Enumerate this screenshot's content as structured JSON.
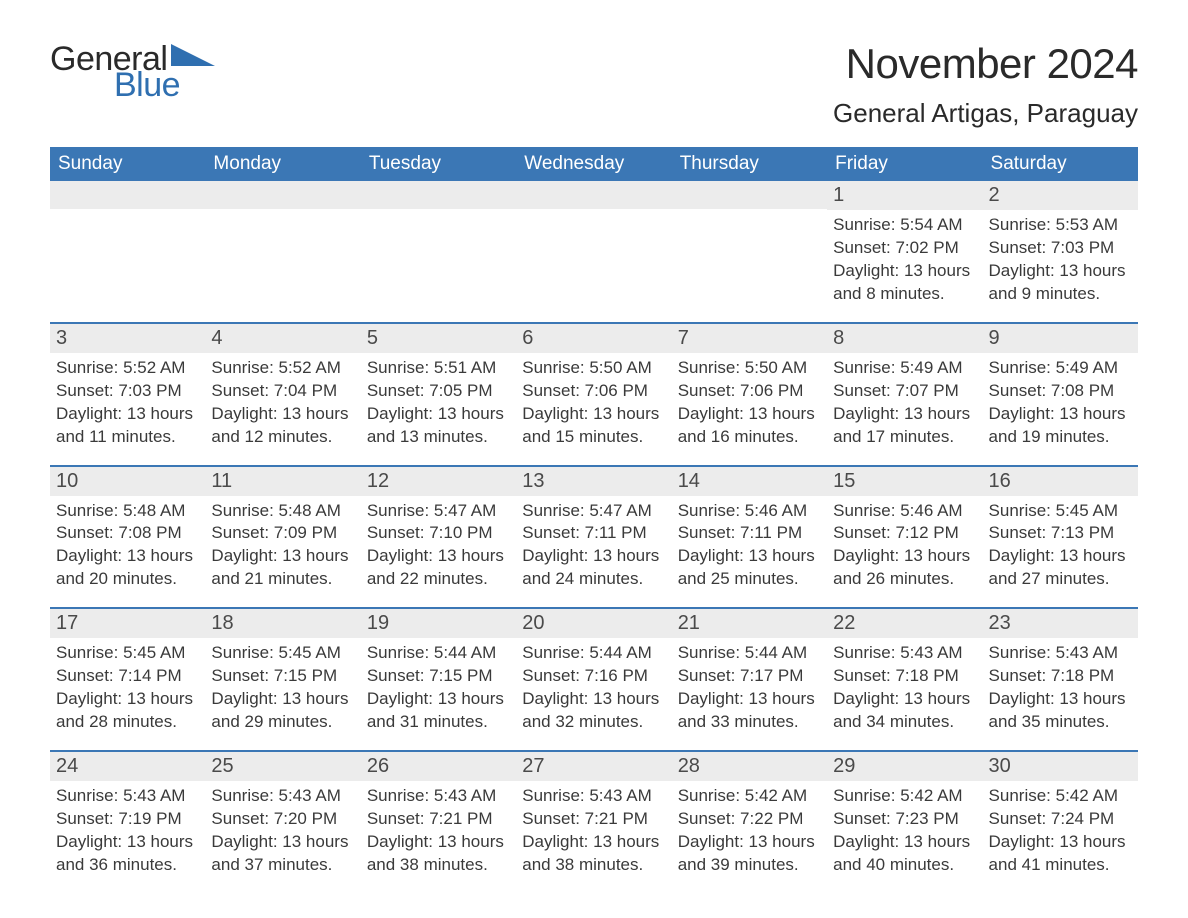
{
  "brand": {
    "word1": "General",
    "word2": "Blue",
    "word1_color": "#2a2a2a",
    "word2_color": "#2f6fb0",
    "triangle_color": "#2f6fb0"
  },
  "title": "November 2024",
  "location": "General Artigas, Paraguay",
  "colors": {
    "header_bg": "#3b77b5",
    "header_text": "#ffffff",
    "daynum_bg": "#ececec",
    "daynum_text": "#4a4a4a",
    "body_text": "#3a3a3a",
    "week_divider": "#3b77b5",
    "page_bg": "#ffffff"
  },
  "fonts": {
    "title_pt": 42,
    "location_pt": 26,
    "dow_pt": 19,
    "daynum_pt": 20,
    "body_pt": 17,
    "logo_pt": 34
  },
  "days_of_week": [
    "Sunday",
    "Monday",
    "Tuesday",
    "Wednesday",
    "Thursday",
    "Friday",
    "Saturday"
  ],
  "weeks": [
    [
      {
        "date": null
      },
      {
        "date": null
      },
      {
        "date": null
      },
      {
        "date": null
      },
      {
        "date": null
      },
      {
        "date": "1",
        "sunrise": "Sunrise: 5:54 AM",
        "sunset": "Sunset: 7:02 PM",
        "daylight": "Daylight: 13 hours and 8 minutes."
      },
      {
        "date": "2",
        "sunrise": "Sunrise: 5:53 AM",
        "sunset": "Sunset: 7:03 PM",
        "daylight": "Daylight: 13 hours and 9 minutes."
      }
    ],
    [
      {
        "date": "3",
        "sunrise": "Sunrise: 5:52 AM",
        "sunset": "Sunset: 7:03 PM",
        "daylight": "Daylight: 13 hours and 11 minutes."
      },
      {
        "date": "4",
        "sunrise": "Sunrise: 5:52 AM",
        "sunset": "Sunset: 7:04 PM",
        "daylight": "Daylight: 13 hours and 12 minutes."
      },
      {
        "date": "5",
        "sunrise": "Sunrise: 5:51 AM",
        "sunset": "Sunset: 7:05 PM",
        "daylight": "Daylight: 13 hours and 13 minutes."
      },
      {
        "date": "6",
        "sunrise": "Sunrise: 5:50 AM",
        "sunset": "Sunset: 7:06 PM",
        "daylight": "Daylight: 13 hours and 15 minutes."
      },
      {
        "date": "7",
        "sunrise": "Sunrise: 5:50 AM",
        "sunset": "Sunset: 7:06 PM",
        "daylight": "Daylight: 13 hours and 16 minutes."
      },
      {
        "date": "8",
        "sunrise": "Sunrise: 5:49 AM",
        "sunset": "Sunset: 7:07 PM",
        "daylight": "Daylight: 13 hours and 17 minutes."
      },
      {
        "date": "9",
        "sunrise": "Sunrise: 5:49 AM",
        "sunset": "Sunset: 7:08 PM",
        "daylight": "Daylight: 13 hours and 19 minutes."
      }
    ],
    [
      {
        "date": "10",
        "sunrise": "Sunrise: 5:48 AM",
        "sunset": "Sunset: 7:08 PM",
        "daylight": "Daylight: 13 hours and 20 minutes."
      },
      {
        "date": "11",
        "sunrise": "Sunrise: 5:48 AM",
        "sunset": "Sunset: 7:09 PM",
        "daylight": "Daylight: 13 hours and 21 minutes."
      },
      {
        "date": "12",
        "sunrise": "Sunrise: 5:47 AM",
        "sunset": "Sunset: 7:10 PM",
        "daylight": "Daylight: 13 hours and 22 minutes."
      },
      {
        "date": "13",
        "sunrise": "Sunrise: 5:47 AM",
        "sunset": "Sunset: 7:11 PM",
        "daylight": "Daylight: 13 hours and 24 minutes."
      },
      {
        "date": "14",
        "sunrise": "Sunrise: 5:46 AM",
        "sunset": "Sunset: 7:11 PM",
        "daylight": "Daylight: 13 hours and 25 minutes."
      },
      {
        "date": "15",
        "sunrise": "Sunrise: 5:46 AM",
        "sunset": "Sunset: 7:12 PM",
        "daylight": "Daylight: 13 hours and 26 minutes."
      },
      {
        "date": "16",
        "sunrise": "Sunrise: 5:45 AM",
        "sunset": "Sunset: 7:13 PM",
        "daylight": "Daylight: 13 hours and 27 minutes."
      }
    ],
    [
      {
        "date": "17",
        "sunrise": "Sunrise: 5:45 AM",
        "sunset": "Sunset: 7:14 PM",
        "daylight": "Daylight: 13 hours and 28 minutes."
      },
      {
        "date": "18",
        "sunrise": "Sunrise: 5:45 AM",
        "sunset": "Sunset: 7:15 PM",
        "daylight": "Daylight: 13 hours and 29 minutes."
      },
      {
        "date": "19",
        "sunrise": "Sunrise: 5:44 AM",
        "sunset": "Sunset: 7:15 PM",
        "daylight": "Daylight: 13 hours and 31 minutes."
      },
      {
        "date": "20",
        "sunrise": "Sunrise: 5:44 AM",
        "sunset": "Sunset: 7:16 PM",
        "daylight": "Daylight: 13 hours and 32 minutes."
      },
      {
        "date": "21",
        "sunrise": "Sunrise: 5:44 AM",
        "sunset": "Sunset: 7:17 PM",
        "daylight": "Daylight: 13 hours and 33 minutes."
      },
      {
        "date": "22",
        "sunrise": "Sunrise: 5:43 AM",
        "sunset": "Sunset: 7:18 PM",
        "daylight": "Daylight: 13 hours and 34 minutes."
      },
      {
        "date": "23",
        "sunrise": "Sunrise: 5:43 AM",
        "sunset": "Sunset: 7:18 PM",
        "daylight": "Daylight: 13 hours and 35 minutes."
      }
    ],
    [
      {
        "date": "24",
        "sunrise": "Sunrise: 5:43 AM",
        "sunset": "Sunset: 7:19 PM",
        "daylight": "Daylight: 13 hours and 36 minutes."
      },
      {
        "date": "25",
        "sunrise": "Sunrise: 5:43 AM",
        "sunset": "Sunset: 7:20 PM",
        "daylight": "Daylight: 13 hours and 37 minutes."
      },
      {
        "date": "26",
        "sunrise": "Sunrise: 5:43 AM",
        "sunset": "Sunset: 7:21 PM",
        "daylight": "Daylight: 13 hours and 38 minutes."
      },
      {
        "date": "27",
        "sunrise": "Sunrise: 5:43 AM",
        "sunset": "Sunset: 7:21 PM",
        "daylight": "Daylight: 13 hours and 38 minutes."
      },
      {
        "date": "28",
        "sunrise": "Sunrise: 5:42 AM",
        "sunset": "Sunset: 7:22 PM",
        "daylight": "Daylight: 13 hours and 39 minutes."
      },
      {
        "date": "29",
        "sunrise": "Sunrise: 5:42 AM",
        "sunset": "Sunset: 7:23 PM",
        "daylight": "Daylight: 13 hours and 40 minutes."
      },
      {
        "date": "30",
        "sunrise": "Sunrise: 5:42 AM",
        "sunset": "Sunset: 7:24 PM",
        "daylight": "Daylight: 13 hours and 41 minutes."
      }
    ]
  ]
}
